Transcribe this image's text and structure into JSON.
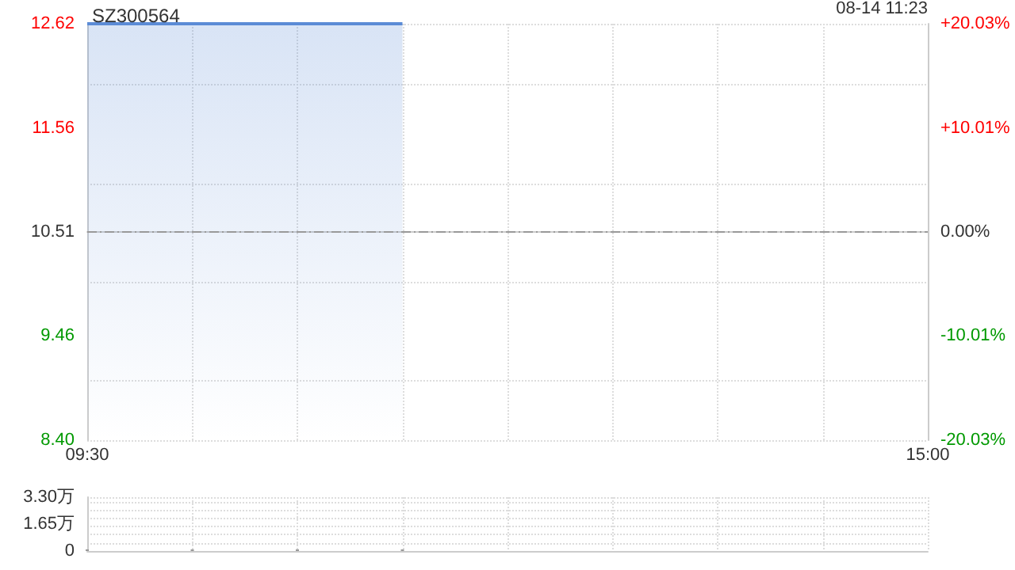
{
  "chart_data": [
    {
      "type": "area",
      "title": "SZ300564",
      "annotations": [
        "08-14 11:23"
      ],
      "categories": [
        "09:30",
        null,
        null,
        null,
        null,
        null,
        null,
        null,
        "15:00"
      ],
      "series": [
        {
          "color": "#5b8bd6",
          "values": [
            12.62,
            12.62,
            12.62,
            12.62,
            null,
            null,
            null,
            null,
            null
          ]
        }
      ],
      "ylim": [
        8.4,
        12.62
      ],
      "yticks": [
        {
          "value": 8.4,
          "label": "8.40"
        },
        9.46,
        10.51,
        11.56,
        12.62
      ],
      "y2lim": [
        -20.03,
        20.03
      ],
      "y2ticks": [
        {
          "value": -20.03,
          "label": "-20.03%"
        },
        {
          "value": -10.01,
          "label": "-10.01%"
        },
        {
          "value": 0,
          "label": "0.00%"
        },
        {
          "value": 10.01,
          "label": "+10.01%"
        },
        {
          "value": 20.03,
          "label": "+20.03%"
        }
      ],
      "ref_lines": [
        {
          "axis": "y",
          "value": 10.51,
          "line_style": "dashed",
          "color": "#999999"
        }
      ],
      "grid": true,
      "marker": "none"
    },
    {
      "type": "bar",
      "tick_labels": "y",
      "categories": [
        null,
        null,
        null,
        null,
        null,
        null,
        null,
        null,
        null
      ],
      "series": [
        {
          "color": "#999999",
          "values": [
            0.1,
            0.1,
            0.1,
            0.1,
            null,
            null,
            null,
            null,
            null
          ]
        }
      ],
      "ylim": [
        0,
        3.3
      ],
      "yticks": [
        0,
        {
          "value": 1.65,
          "label": "1.65万"
        },
        {
          "value": 3.3,
          "label": "3.30万"
        }
      ],
      "grid": true
    }
  ]
}
